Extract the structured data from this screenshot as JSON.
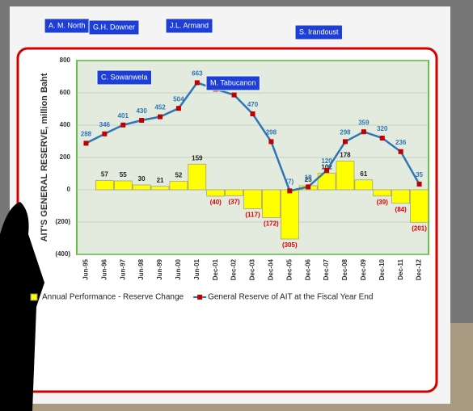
{
  "chart_data": {
    "type": "combo",
    "y_label": "AIT'S GENERAL RESERVE, million Baht",
    "categories": [
      "Jun-95",
      "Jun-96",
      "Jun-97",
      "Jun-98",
      "Jun-99",
      "Jun-00",
      "Jun-01",
      "Dec-01",
      "Dec-02",
      "Dec-03",
      "Dec-04",
      "Dec-05",
      "Dec-06",
      "Dec-07",
      "Dec-08",
      "Dec-09",
      "Dec-10",
      "Dec-11",
      "Dec-12"
    ],
    "series": [
      {
        "name": "Annual Performance - Reserve Change",
        "type": "bar",
        "color": "#ffff00",
        "values": [
          null,
          57,
          55,
          30,
          21,
          52,
          159,
          -40,
          -37,
          -117,
          -172,
          -305,
          25,
          102,
          178,
          61,
          -39,
          -84,
          -201
        ],
        "value_labels": [
          null,
          "57",
          "55",
          "30",
          "21",
          "52",
          "159",
          "(40)",
          "(37)",
          "(117)",
          "(172)",
          "(305)",
          "25",
          "102",
          "178",
          "61",
          "(39)",
          "(84)",
          "(201)"
        ]
      },
      {
        "name": "General Reserve of AIT at the Fiscal Year End",
        "type": "line",
        "color": "#2e75b6",
        "marker_color": "#c00000",
        "values": [
          288,
          346,
          401,
          430,
          452,
          504,
          663,
          623,
          587,
          470,
          298,
          -7,
          18,
          120,
          298,
          359,
          320,
          236,
          35
        ],
        "value_labels": [
          "288",
          "346",
          "401",
          "430",
          "452",
          "504",
          "663",
          "623",
          "587",
          "470",
          "298",
          "(7)",
          "18",
          "120",
          "298",
          "359",
          "320",
          "236",
          "35"
        ]
      }
    ],
    "ylim": [
      -400,
      800
    ],
    "yticks": [
      {
        "value": -400,
        "label": "(400)"
      },
      {
        "value": -200,
        "label": "(200)"
      },
      0,
      200,
      400,
      600,
      800
    ],
    "grid": true,
    "annotations": [
      "A. M. North",
      "G.H. Downer",
      "J.L. Armand",
      "S. Irandoust",
      "C. Sowanwela",
      "M. Tabucanon"
    ]
  }
}
